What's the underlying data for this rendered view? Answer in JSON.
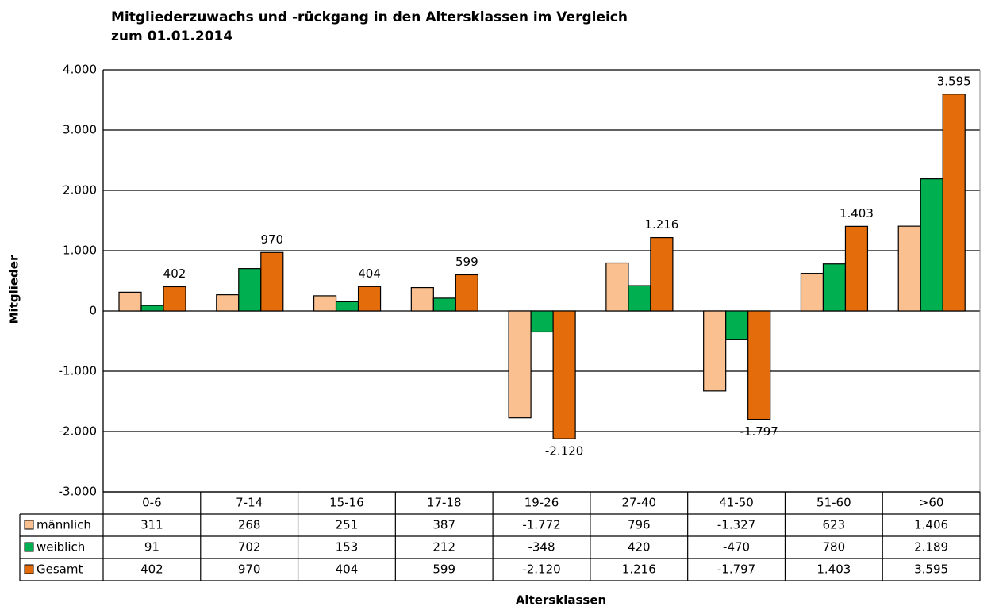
{
  "chart_data": {
    "type": "bar",
    "title": [
      "Mitgliederzuwachs und -rückgang in den Altersklassen im Vergleich",
      "zum 01.01.2014"
    ],
    "x_label": "Altersklassen",
    "y_label": "Mitglieder",
    "categories": [
      "0-6",
      "7-14",
      "15-16",
      "17-18",
      "19-26",
      "27-40",
      "41-50",
      "51-60",
      ">60"
    ],
    "series": [
      {
        "name": "männlich",
        "color": "#fac090",
        "show_labels": false,
        "values": [
          311,
          268,
          251,
          387,
          -1772,
          796,
          -1327,
          623,
          1406
        ],
        "value_labels": [
          "311",
          "268",
          "251",
          "387",
          "-1.772",
          "796",
          "-1.327",
          "623",
          "1.406"
        ]
      },
      {
        "name": "weiblich",
        "color": "#00b050",
        "show_labels": false,
        "values": [
          91,
          702,
          153,
          212,
          -348,
          420,
          -470,
          780,
          2189
        ],
        "value_labels": [
          "91",
          "702",
          "153",
          "212",
          "-348",
          "420",
          "-470",
          "780",
          "2.189"
        ]
      },
      {
        "name": "Gesamt",
        "color": "#e46c0a",
        "show_labels": true,
        "values": [
          402,
          970,
          404,
          599,
          -2120,
          1216,
          -1797,
          1403,
          3595
        ],
        "value_labels": [
          "402",
          "970",
          "404",
          "599",
          "-2.120",
          "1.216",
          "-1.797",
          "1.403",
          "3.595"
        ]
      }
    ],
    "ylim": [
      -3000,
      4000
    ],
    "yticks": [
      {
        "value": -3000,
        "label": "-3.000"
      },
      {
        "value": -2000,
        "label": "-2.000"
      },
      {
        "value": -1000,
        "label": "-1.000"
      },
      0,
      {
        "value": 1000,
        "label": "1.000"
      },
      {
        "value": 2000,
        "label": "2.000"
      },
      {
        "value": 3000,
        "label": "3.000"
      },
      {
        "value": 4000,
        "label": "4.000"
      }
    ],
    "grid": true,
    "data_table": true
  }
}
